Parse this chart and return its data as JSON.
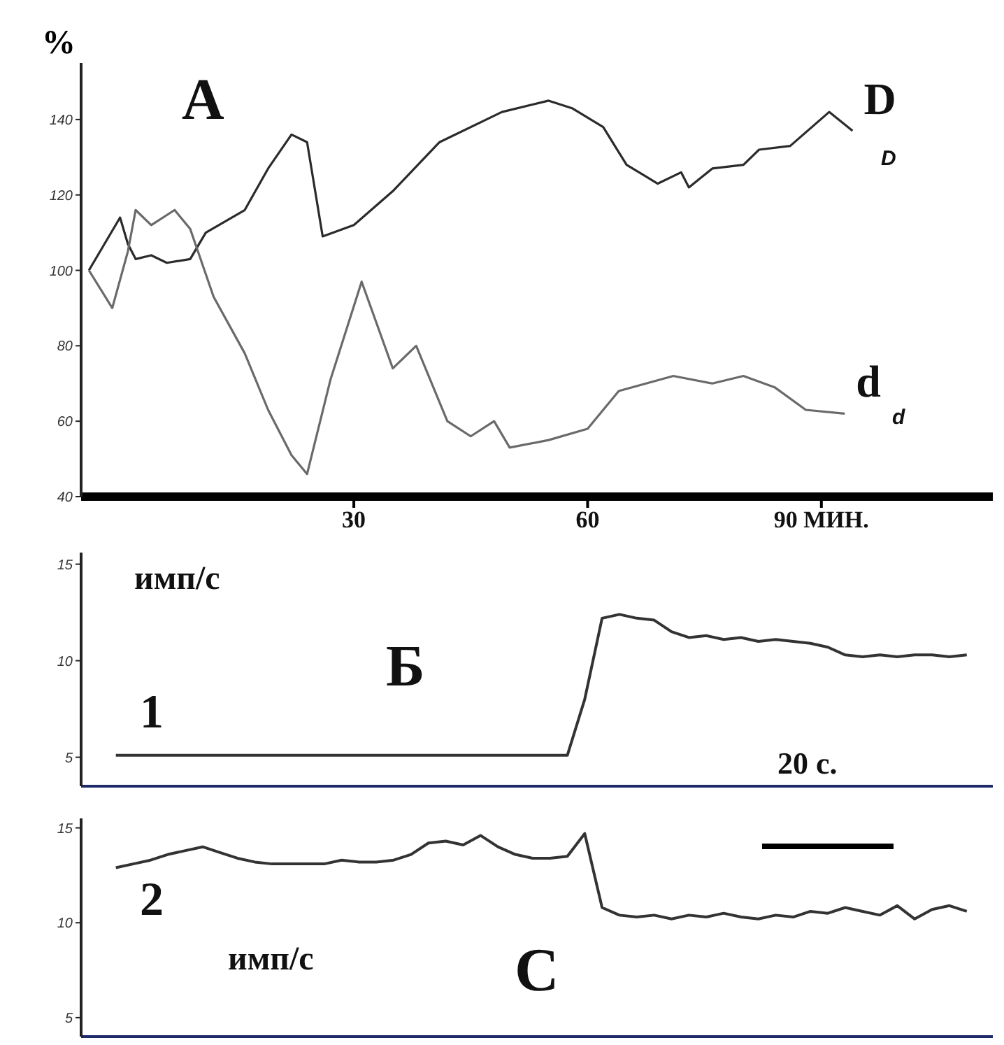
{
  "chart_data": [
    {
      "type": "line",
      "ylabel": "%",
      "annotations": [
        "A",
        "D",
        "d"
      ],
      "series": [
        {
          "name": "D",
          "color": "#2b2b2b",
          "x": [
            -4,
            0,
            1,
            2,
            4,
            6,
            9,
            11,
            16,
            19,
            22,
            24,
            26,
            30,
            35,
            41,
            49,
            55,
            58,
            62,
            65,
            69,
            72,
            73,
            76,
            80,
            82,
            86,
            91,
            94
          ],
          "values": [
            100,
            114,
            107,
            103,
            104,
            102,
            103,
            110,
            116,
            127,
            136,
            134,
            109,
            112,
            121,
            134,
            142,
            145,
            143,
            138,
            128,
            123,
            126,
            122,
            127,
            128,
            132,
            133,
            142,
            137
          ]
        },
        {
          "name": "d",
          "color": "#6a6a6a",
          "x": [
            -4,
            -1,
            1,
            2,
            4,
            7,
            9,
            12,
            16,
            19,
            22,
            24,
            27,
            31,
            35,
            38,
            42,
            45,
            48,
            50,
            55,
            60,
            64,
            71,
            76,
            80,
            84,
            88,
            93
          ],
          "values": [
            100,
            90,
            105,
            116,
            112,
            116,
            111,
            93,
            78,
            63,
            51,
            46,
            71,
            97,
            74,
            80,
            60,
            56,
            60,
            53,
            55,
            58,
            68,
            72,
            70,
            72,
            69,
            63,
            62
          ]
        }
      ],
      "xlim": [
        -5,
        112
      ],
      "xticks": [
        30,
        60,
        {
          "value": 90,
          "label": "90 МИН."
        }
      ],
      "ylim": [
        40,
        155
      ],
      "yticks": [
        40,
        60,
        80,
        100,
        120,
        140
      ]
    },
    {
      "type": "line",
      "annotations": [
        "имп/с",
        "Б",
        "1",
        "20 с."
      ],
      "categories": [
        null,
        null,
        null,
        null,
        null,
        null,
        null,
        null,
        null,
        null,
        null,
        null,
        null,
        null,
        null,
        null,
        null,
        null,
        null,
        null,
        null,
        null,
        null,
        null,
        null,
        null,
        null,
        null,
        null,
        null,
        null,
        null,
        null,
        null,
        null,
        null,
        null,
        null,
        null,
        null,
        null,
        null,
        null,
        null,
        null,
        null,
        null,
        null,
        null,
        null
      ],
      "series": [
        {
          "color": "#333333",
          "values": [
            5.1,
            5.1,
            5.1,
            5.1,
            5.1,
            5.1,
            5.1,
            5.1,
            5.1,
            5.1,
            5.1,
            5.1,
            5.1,
            5.1,
            5.1,
            5.1,
            5.1,
            5.1,
            5.1,
            5.1,
            5.1,
            5.1,
            5.1,
            5.1,
            5.1,
            5.1,
            5.1,
            8,
            12.2,
            12.4,
            12.2,
            12.1,
            11.5,
            11.2,
            11.3,
            11.1,
            11.2,
            11.0,
            11.1,
            11.0,
            10.9,
            10.7,
            10.3,
            10.2,
            10.3,
            10.2,
            10.3,
            10.3,
            10.2,
            10.3
          ]
        }
      ],
      "ylim": [
        3.5,
        15.6
      ],
      "yticks": [
        5,
        10,
        15
      ],
      "tick_labels": "y"
    },
    {
      "type": "line",
      "annotations": [
        "2",
        "имп/с",
        "C"
      ],
      "categories": [
        null,
        null,
        null,
        null,
        null,
        null,
        null,
        null,
        null,
        null,
        null,
        null,
        null,
        null,
        null,
        null,
        null,
        null,
        null,
        null,
        null,
        null,
        null,
        null,
        null,
        null,
        null,
        null,
        null,
        null,
        null,
        null,
        null,
        null,
        null,
        null,
        null,
        null,
        null,
        null,
        null,
        null,
        null,
        null,
        null,
        null,
        null,
        null,
        null,
        null
      ],
      "series": [
        {
          "color": "#333333",
          "values": [
            12.9,
            13.1,
            13.3,
            13.6,
            13.8,
            14.0,
            13.7,
            13.4,
            13.2,
            13.1,
            13.1,
            13.1,
            13.1,
            13.3,
            13.2,
            13.2,
            13.3,
            13.6,
            14.2,
            14.3,
            14.1,
            14.6,
            14.0,
            13.6,
            13.4,
            13.4,
            13.5,
            14.7,
            10.8,
            10.4,
            10.3,
            10.4,
            10.2,
            10.4,
            10.3,
            10.5,
            10.3,
            10.2,
            10.4,
            10.3,
            10.6,
            10.5,
            10.8,
            10.6,
            10.4,
            10.9,
            10.2,
            10.7,
            10.9,
            10.6
          ]
        }
      ],
      "ylim": [
        4,
        15.5
      ],
      "yticks": [
        5,
        10,
        15
      ],
      "tick_labels": "y"
    }
  ]
}
